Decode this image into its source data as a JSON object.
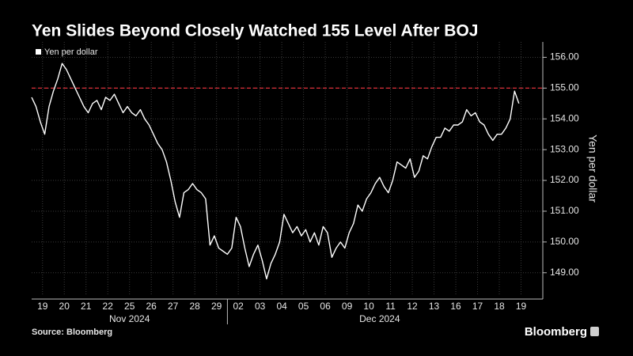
{
  "chart_data": {
    "type": "line",
    "title": "Yen Slides Beyond Closely Watched 155 Level After BOJ",
    "y_axis_label": "Yen per dollar",
    "source": "Source: Bloomberg",
    "brand": "Bloomberg",
    "legend_position": "top-left",
    "grid": true,
    "reference_line": {
      "value": 155,
      "color": "#e0303a"
    },
    "x_groups": [
      "Nov 2024",
      "Dec 2024"
    ],
    "xlim": [
      0,
      23.5
    ],
    "xticks": [
      {
        "value": 0.5,
        "label": "19"
      },
      {
        "value": 1.5,
        "label": "20"
      },
      {
        "value": 2.5,
        "label": "21"
      },
      {
        "value": 3.5,
        "label": "22"
      },
      {
        "value": 4.5,
        "label": "25"
      },
      {
        "value": 5.5,
        "label": "26"
      },
      {
        "value": 6.5,
        "label": "27"
      },
      {
        "value": 7.5,
        "label": "28"
      },
      {
        "value": 8.5,
        "label": "29"
      },
      {
        "value": 9.5,
        "label": "02"
      },
      {
        "value": 10.5,
        "label": "03"
      },
      {
        "value": 11.5,
        "label": "04"
      },
      {
        "value": 12.5,
        "label": "05"
      },
      {
        "value": 13.5,
        "label": "06"
      },
      {
        "value": 14.5,
        "label": "09"
      },
      {
        "value": 15.5,
        "label": "10"
      },
      {
        "value": 16.5,
        "label": "11"
      },
      {
        "value": 17.5,
        "label": "12"
      },
      {
        "value": 18.5,
        "label": "13"
      },
      {
        "value": 19.5,
        "label": "16"
      },
      {
        "value": 20.5,
        "label": "17"
      },
      {
        "value": 21.5,
        "label": "18"
      },
      {
        "value": 22.5,
        "label": "19"
      }
    ],
    "ylim": [
      148.3,
      156.5
    ],
    "yticks": [
      {
        "value": 149,
        "label": "149.00"
      },
      {
        "value": 150,
        "label": "150.00"
      },
      {
        "value": 151,
        "label": "151.00"
      },
      {
        "value": 152,
        "label": "152.00"
      },
      {
        "value": 153,
        "label": "153.00"
      },
      {
        "value": 154,
        "label": "154.00"
      },
      {
        "value": 155,
        "label": "155.00"
      },
      {
        "value": 156,
        "label": "156.00"
      }
    ],
    "x": [
      0,
      0.2,
      0.4,
      0.6,
      0.8,
      1,
      1.2,
      1.4,
      1.6,
      1.8,
      2,
      2.2,
      2.4,
      2.6,
      2.8,
      3,
      3.2,
      3.4,
      3.6,
      3.8,
      4,
      4.2,
      4.4,
      4.6,
      4.8,
      5,
      5.2,
      5.4,
      5.6,
      5.8,
      6,
      6.2,
      6.4,
      6.6,
      6.8,
      7,
      7.2,
      7.4,
      7.6,
      7.8,
      8,
      8.2,
      8.4,
      8.6,
      8.8,
      9,
      9.2,
      9.4,
      9.6,
      9.8,
      10,
      10.2,
      10.4,
      10.6,
      10.8,
      11,
      11.2,
      11.4,
      11.6,
      11.8,
      12,
      12.2,
      12.4,
      12.6,
      12.8,
      13,
      13.2,
      13.4,
      13.6,
      13.8,
      14,
      14.2,
      14.4,
      14.6,
      14.8,
      15,
      15.2,
      15.4,
      15.6,
      15.8,
      16,
      16.2,
      16.4,
      16.6,
      16.8,
      17,
      17.2,
      17.4,
      17.6,
      17.8,
      18,
      18.2,
      18.4,
      18.6,
      18.8,
      19,
      19.2,
      19.4,
      19.6,
      19.8,
      20,
      20.2,
      20.4,
      20.6,
      20.8,
      21,
      21.2,
      21.4,
      21.6,
      21.8,
      22,
      22.2,
      22.4
    ],
    "series": [
      {
        "name": "Yen per dollar",
        "color": "#ffffff",
        "values": [
          154.7,
          154.4,
          153.9,
          153.5,
          154.4,
          154.9,
          155.3,
          155.8,
          155.6,
          155.3,
          155.0,
          154.7,
          154.4,
          154.2,
          154.5,
          154.6,
          154.3,
          154.7,
          154.6,
          154.8,
          154.5,
          154.2,
          154.4,
          154.2,
          154.1,
          154.3,
          154.0,
          153.8,
          153.5,
          153.2,
          153.0,
          152.6,
          152.0,
          151.3,
          150.8,
          151.6,
          151.7,
          151.9,
          151.7,
          151.6,
          151.4,
          149.9,
          150.2,
          149.8,
          149.7,
          149.6,
          149.8,
          150.8,
          150.5,
          149.8,
          149.2,
          149.6,
          149.9,
          149.4,
          148.8,
          149.3,
          149.6,
          150.0,
          150.9,
          150.6,
          150.3,
          150.5,
          150.2,
          150.4,
          150.0,
          150.3,
          149.9,
          150.5,
          150.3,
          149.5,
          149.8,
          150.0,
          149.8,
          150.3,
          150.6,
          151.2,
          151.0,
          151.4,
          151.6,
          151.9,
          152.1,
          151.8,
          151.6,
          152.0,
          152.6,
          152.5,
          152.4,
          152.7,
          152.1,
          152.3,
          152.8,
          152.7,
          153.1,
          153.4,
          153.4,
          153.7,
          153.6,
          153.8,
          153.8,
          153.9,
          154.3,
          154.1,
          154.2,
          153.9,
          153.8,
          153.5,
          153.3,
          153.5,
          153.5,
          153.7,
          154.0,
          154.9,
          154.5
        ]
      }
    ]
  }
}
